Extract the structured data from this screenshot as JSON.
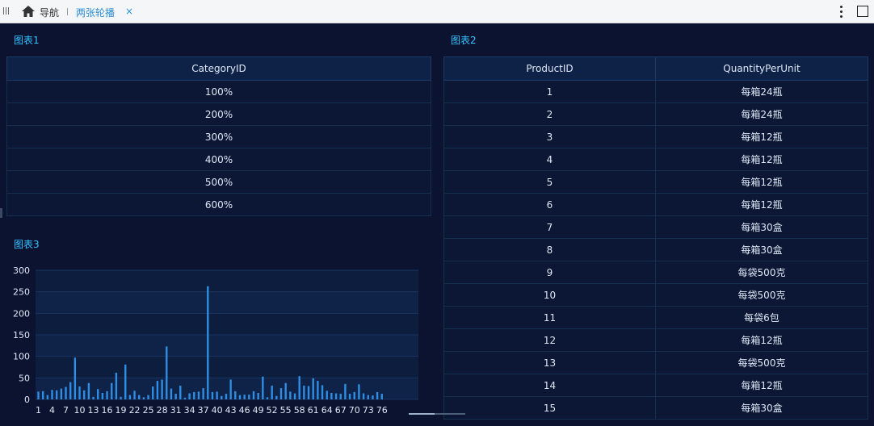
{
  "topbar": {
    "nav_label": "导航",
    "active_tab_label": "两张轮播",
    "close_glyph": "×"
  },
  "panel1": {
    "title": "图表1",
    "column": "CategoryID",
    "rows": [
      "100%",
      "200%",
      "300%",
      "400%",
      "500%",
      "600%"
    ]
  },
  "panel2": {
    "title": "图表2",
    "columns": [
      "ProductID",
      "QuantityPerUnit"
    ],
    "rows": [
      [
        "1",
        "每箱24瓶"
      ],
      [
        "2",
        "每箱24瓶"
      ],
      [
        "3",
        "每箱12瓶"
      ],
      [
        "4",
        "每箱12瓶"
      ],
      [
        "5",
        "每箱12瓶"
      ],
      [
        "6",
        "每箱12瓶"
      ],
      [
        "7",
        "每箱30盒"
      ],
      [
        "8",
        "每箱30盒"
      ],
      [
        "9",
        "每袋500克"
      ],
      [
        "10",
        "每袋500克"
      ],
      [
        "11",
        "每袋6包"
      ],
      [
        "12",
        "每箱12瓶"
      ],
      [
        "13",
        "每袋500克"
      ],
      [
        "14",
        "每箱12瓶"
      ],
      [
        "15",
        "每箱30盒"
      ]
    ]
  },
  "panel3": {
    "title": "图表3"
  },
  "colors": {
    "accent": "#34c3ff",
    "bar": "#2f8de4",
    "background": "#0b1330"
  },
  "chart_data": {
    "type": "bar",
    "title": "",
    "xlabel": "",
    "ylabel": "",
    "ylim": [
      0,
      300
    ],
    "yticks": [
      0,
      50,
      100,
      150,
      200,
      250,
      300
    ],
    "xtick_labels": [
      "1",
      "4",
      "7",
      "10",
      "13",
      "16",
      "19",
      "22",
      "25",
      "28",
      "31",
      "34",
      "37",
      "40",
      "43",
      "46",
      "49",
      "52",
      "55",
      "58",
      "61",
      "64",
      "67",
      "70",
      "73",
      "76"
    ],
    "categories": [
      "1",
      "2",
      "3",
      "4",
      "5",
      "6",
      "7",
      "8",
      "9",
      "10",
      "11",
      "12",
      "13",
      "14",
      "15",
      "16",
      "17",
      "18",
      "19",
      "20",
      "21",
      "22",
      "23",
      "24",
      "25",
      "26",
      "27",
      "28",
      "29",
      "30",
      "31",
      "32",
      "33",
      "34",
      "35",
      "36",
      "37",
      "38",
      "39",
      "40",
      "41",
      "42",
      "43",
      "44",
      "45",
      "46",
      "47",
      "48",
      "49",
      "50",
      "51",
      "52",
      "53",
      "54",
      "55",
      "56",
      "57",
      "58",
      "59",
      "60",
      "61",
      "62",
      "63",
      "64",
      "65",
      "66",
      "67",
      "68",
      "69",
      "70",
      "71",
      "72",
      "73",
      "74",
      "75",
      "76",
      "77"
    ],
    "values": [
      18,
      19,
      10,
      22,
      21,
      25,
      29,
      40,
      97,
      30,
      21,
      38,
      6,
      24,
      15,
      19,
      38,
      62,
      6,
      81,
      10,
      20,
      10,
      5,
      10,
      30,
      43,
      46,
      123,
      25,
      13,
      32,
      4,
      14,
      17,
      18,
      26,
      263,
      17,
      18,
      8,
      13,
      46,
      19,
      10,
      11,
      11,
      19,
      15,
      53,
      5,
      32,
      8,
      26,
      38,
      18,
      14,
      54,
      32,
      31,
      49,
      43,
      33,
      20,
      15,
      14,
      13,
      36,
      13,
      17,
      35,
      14,
      10,
      9,
      17,
      13,
      0
    ],
    "grid": true
  }
}
